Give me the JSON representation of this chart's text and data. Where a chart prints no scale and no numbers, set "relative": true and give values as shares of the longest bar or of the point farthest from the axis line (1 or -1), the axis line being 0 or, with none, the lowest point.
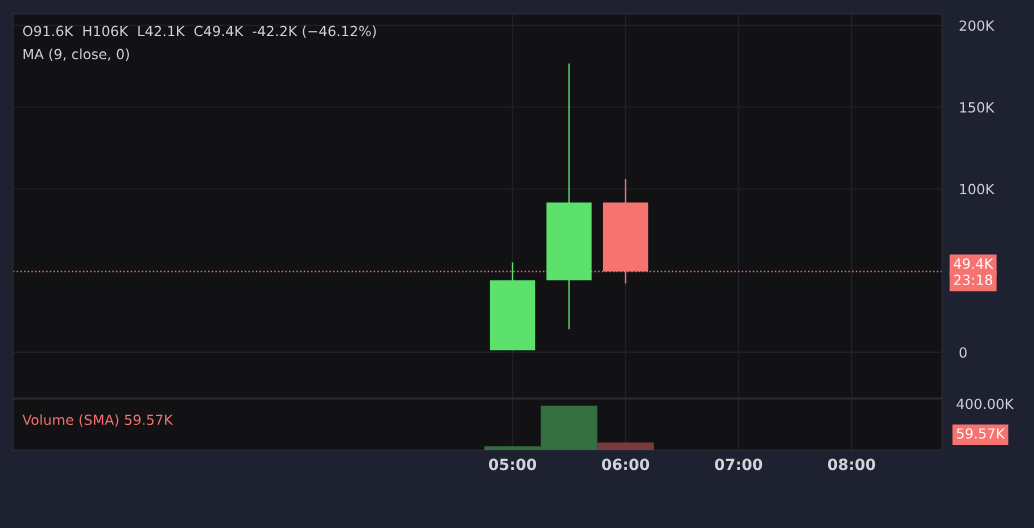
{
  "chart_data": [
    {
      "type": "candlestick",
      "title": "O91.6K  H106K  L42.1K  C49.4K  -42.2K (−46.12%)",
      "subtitle": "MA (9, close, 0)",
      "x": [
        5,
        5.5,
        6
      ],
      "ohlc": [
        [
          1200,
          55000,
          1200,
          44000
        ],
        [
          44000,
          176700,
          14000,
          91600
        ],
        [
          91600,
          106000,
          42100,
          49400
        ]
      ],
      "colors": [
        "#5de16d",
        "#5de16d",
        "#f77370"
      ],
      "xlim": [
        0.58,
        8.8
      ],
      "xticks": [
        {
          "value": 5,
          "label": null
        },
        {
          "value": 6,
          "label": null
        },
        {
          "value": 7,
          "label": null
        },
        {
          "value": 8,
          "label": null
        }
      ],
      "ylim": [
        -28000,
        207000
      ],
      "yticks": [
        {
          "value": 0,
          "label": "0"
        },
        {
          "value": 100000,
          "label": "100K"
        },
        {
          "value": 150000,
          "label": "150K"
        },
        {
          "value": 200000,
          "label": "200K"
        }
      ],
      "ref_lines": [
        {
          "axis": "y",
          "value": 49400,
          "label": "49.4K",
          "color": "#f77370",
          "line_style": "dotted"
        }
      ],
      "annotations": [
        "23:18"
      ],
      "tick_labels": "y",
      "grid": true
    },
    {
      "type": "bar",
      "title": "Volume (SMA) 59.57K",
      "x": [
        5,
        5.5,
        6
      ],
      "values": [
        0.084,
        1,
        0.169
      ],
      "relative": true,
      "colors": [
        "#34703f",
        "#34703f",
        "#7b3b3e"
      ],
      "xlim": [
        0.58,
        8.8
      ],
      "xticks": [
        {
          "value": 5,
          "label": "05:00"
        },
        {
          "value": 6,
          "label": "06:00"
        },
        {
          "value": 7,
          "label": "07:00"
        },
        {
          "value": 8,
          "label": "08:00"
        }
      ],
      "annotations": [
        "400.00K",
        "59.57K"
      ],
      "grid": true
    }
  ]
}
